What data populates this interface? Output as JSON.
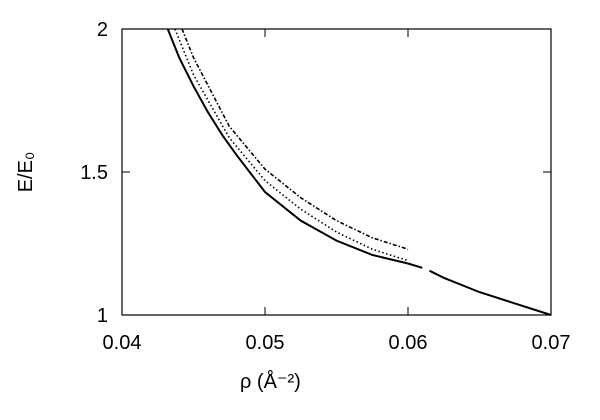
{
  "chart_data": {
    "type": "line",
    "xlabel": "ρ (Å⁻²)",
    "ylabel": "E/E₀",
    "xlim": [
      0.04,
      0.07
    ],
    "xticks": [
      0.04,
      0.05,
      0.06,
      0.07
    ],
    "ylim": [
      1,
      2
    ],
    "yticks": [
      1,
      1.5,
      2
    ],
    "series": [
      {
        "color": "#000000",
        "dash": "solid",
        "x": [
          0.0432,
          0.044,
          0.045,
          0.046,
          0.047,
          0.048,
          0.05,
          0.0525,
          0.055,
          0.0575,
          0.06,
          0.061
        ],
        "values": [
          2,
          1.9,
          1.8,
          1.71,
          1.63,
          1.56,
          1.43,
          1.33,
          1.26,
          1.21,
          1.18,
          1.165
        ]
      },
      {
        "color": "#000000",
        "dash": "solid",
        "x": [
          0.0615,
          0.0625,
          0.065,
          0.0675,
          0.07
        ],
        "values": [
          1.155,
          1.13,
          1.08,
          1.04,
          1.0
        ]
      },
      {
        "color": "#000000",
        "dash": "dotted",
        "x": [
          0.0437,
          0.045,
          0.0475,
          0.05,
          0.0525,
          0.055,
          0.0575,
          0.06
        ],
        "values": [
          2,
          1.84,
          1.62,
          1.47,
          1.37,
          1.29,
          1.23,
          1.19
        ]
      },
      {
        "color": "#000000",
        "dash": "dashdot",
        "x": [
          0.0442,
          0.045,
          0.0475,
          0.05,
          0.0525,
          0.055,
          0.0575,
          0.06
        ],
        "values": [
          2,
          1.9,
          1.66,
          1.51,
          1.41,
          1.33,
          1.27,
          1.23
        ]
      }
    ]
  }
}
